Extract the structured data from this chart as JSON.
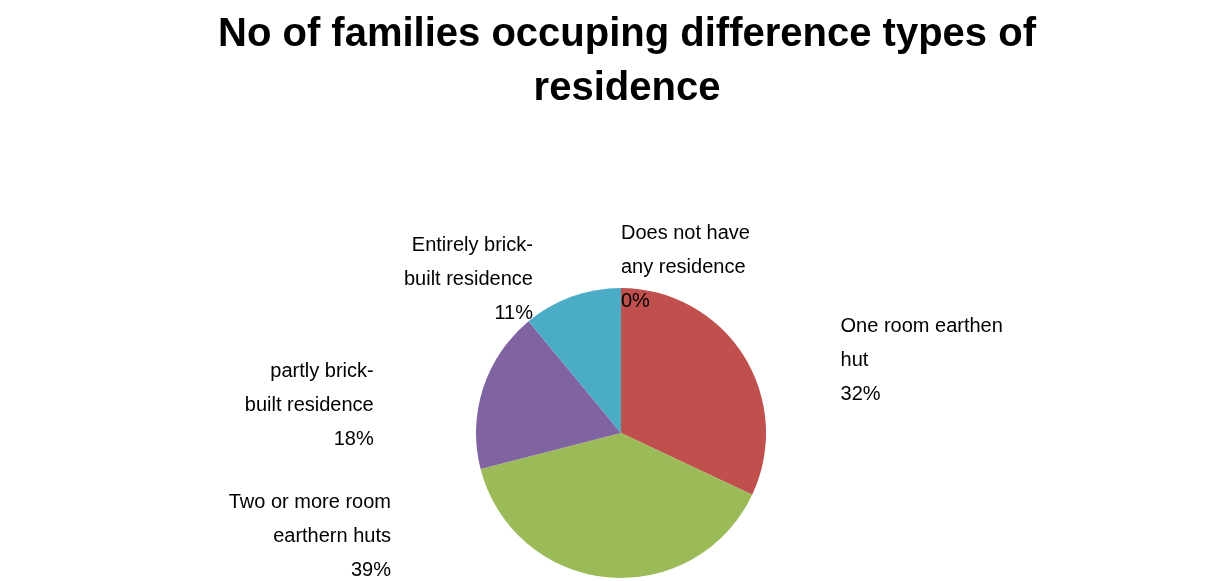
{
  "chart_data": {
    "type": "pie",
    "title": "No of families occuping difference types of residence",
    "categories": [
      "Does not have any residence",
      "One room earthen hut",
      "Two or more room earthern huts",
      "partly brick-built residence",
      "Entirely brick-built residence"
    ],
    "values": [
      0,
      32,
      39,
      18,
      11
    ],
    "colors": [
      "#4f81bd",
      "#c0504d",
      "#9bbb59",
      "#8064a2",
      "#4bacc6"
    ],
    "value_labels": [
      "0%",
      "32%",
      "39%",
      "18%",
      "11%"
    ]
  }
}
